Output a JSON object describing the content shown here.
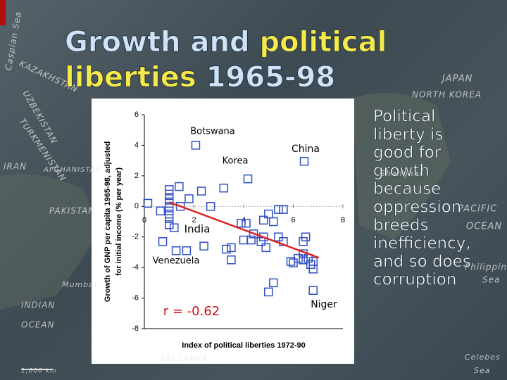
{
  "slide": {
    "title": [
      {
        "text": "Growth and ",
        "color": "#cfe3f7"
      },
      {
        "text": "political",
        "color": "#f5ea4a"
      },
      {
        "text": "liberties ",
        "color": "#f5ea4a"
      },
      {
        "text": "1965-98",
        "color": "#cfe3f7"
      }
    ],
    "bullet": [
      "Political",
      "liberty is",
      "good for",
      "growth",
      "because",
      "oppression",
      "breeds",
      "inefficiency,",
      "and so does",
      "corruption"
    ],
    "map_labels": [
      "JAPAN",
      "NORTH KOREA",
      "IRAN",
      "AFGHANISTAN",
      "PAKISTAN",
      "INDIAN",
      "OCEAN",
      "Mumbai",
      "PACIFIC",
      "OCEAN",
      "Philippine",
      "Sea",
      "Celebes",
      "Sea",
      "Caspian Sea",
      "KAZAKHSTAN",
      "UZBEKISTAN",
      "TURKMENISTAN",
      "Shanghai",
      "SRI LANKA",
      "1,000 km"
    ]
  },
  "chart_data": {
    "type": "scatter",
    "x_label": "Index of political liberties 1972-90",
    "y_label": [
      "Growth of GNP per capita 1965-98, adjusted",
      "for initial income (% per year)"
    ],
    "xlim": [
      0,
      8
    ],
    "xticks": [
      0,
      2,
      4,
      6,
      8
    ],
    "ylim": [
      -8,
      6
    ],
    "yticks": [
      -8,
      -6,
      -4,
      -2,
      0,
      2,
      4,
      6
    ],
    "color": "#2f4fc4",
    "x": [
      2.07,
      6.44,
      4.17,
      1.0,
      1.0,
      1.0,
      1.0,
      1.0,
      1.0,
      1.0,
      1.0,
      1.4,
      1.8,
      2.3,
      3.2,
      2.67,
      1.45,
      0.14,
      0.65,
      1.2,
      1.28,
      1.7,
      0.74,
      2.4,
      3.3,
      3.5,
      3.5,
      3.9,
      4.1,
      4.0,
      4.3,
      4.4,
      4.8,
      5.0,
      5.4,
      5.6,
      5.2,
      4.8,
      4.7,
      4.9,
      5.4,
      5.6,
      5.9,
      6.0,
      6.2,
      6.4,
      6.6,
      6.8,
      6.8,
      6.7,
      6.4,
      5.2,
      5.0,
      6.8,
      6.4,
      6.5
    ],
    "y": [
      4.0,
      2.95,
      1.8,
      1.1,
      0.8,
      0.5,
      0.2,
      -0.1,
      -0.5,
      -0.8,
      -1.2,
      1.3,
      0.5,
      1.0,
      1.2,
      0,
      0,
      0.2,
      -0.3,
      -1.4,
      -2.9,
      -2.9,
      -2.3,
      -2.6,
      -2.8,
      -2.7,
      -3.5,
      -1.1,
      -1.1,
      -2.2,
      -2.2,
      -1.8,
      -0.9,
      -0.5,
      -0.2,
      -0.2,
      -1.0,
      -2.0,
      -2.3,
      -2.7,
      -2.0,
      -2.3,
      -3.6,
      -3.7,
      -3.4,
      -3.1,
      -3.4,
      -3.6,
      -4.1,
      -3.8,
      -3.5,
      -5.0,
      -5.6,
      -5.5,
      -2.3,
      -2.0
    ],
    "trendline": {
      "color": "#e02020",
      "x": [
        1.0,
        7.03
      ],
      "y": [
        0.28,
        -3.36
      ]
    },
    "annotations": [
      "Botswana",
      "Korea",
      "China",
      "India",
      "Venezuela",
      "Niger",
      "r = -0.62"
    ]
  }
}
